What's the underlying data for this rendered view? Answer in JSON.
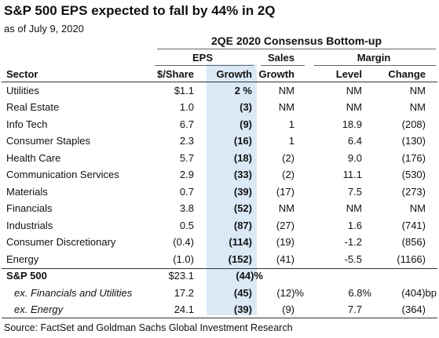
{
  "title": "S&P 500 EPS expected to fall by 44% in 2Q",
  "as_of": "as of July 9, 2020",
  "table_title": "2QE 2020 Consensus Bottom-up",
  "group_headers": {
    "eps": "EPS",
    "sales": "Sales",
    "margin": "Margin"
  },
  "column_headers": {
    "sector": "Sector",
    "per_share": "$/Share",
    "eps_growth": "Growth",
    "sales_growth": "Growth",
    "level": "Level",
    "change": "Change"
  },
  "rows": [
    {
      "sector": "Utilities",
      "per_share": "$1.1",
      "eps_growth": "2 %",
      "sales_growth": "NM",
      "level": "NM",
      "change": "NM"
    },
    {
      "sector": "Real Estate",
      "per_share": "1.0",
      "eps_growth": "(3)",
      "sales_growth": "NM",
      "level": "NM",
      "change": "NM"
    },
    {
      "sector": "Info Tech",
      "per_share": "6.7",
      "eps_growth": "(9)",
      "sales_growth": "1",
      "level": "18.9",
      "change": "(208)"
    },
    {
      "sector": "Consumer Staples",
      "per_share": "2.3",
      "eps_growth": "(16)",
      "sales_growth": "1",
      "level": "6.4",
      "change": "(130)"
    },
    {
      "sector": "Health Care",
      "per_share": "5.7",
      "eps_growth": "(18)",
      "sales_growth": "(2)",
      "level": "9.0",
      "change": "(176)"
    },
    {
      "sector": "Communication Services",
      "per_share": "2.9",
      "eps_growth": "(33)",
      "sales_growth": "(2)",
      "level": "11.1",
      "change": "(530)"
    },
    {
      "sector": "Materials",
      "per_share": "0.7",
      "eps_growth": "(39)",
      "sales_growth": "(17)",
      "level": "7.5",
      "change": "(273)"
    },
    {
      "sector": "Financials",
      "per_share": "3.8",
      "eps_growth": "(52)",
      "sales_growth": "NM",
      "level": "NM",
      "change": "NM"
    },
    {
      "sector": "Industrials",
      "per_share": "0.5",
      "eps_growth": "(87)",
      "sales_growth": "(27)",
      "level": "1.6",
      "change": "(741)"
    },
    {
      "sector": "Consumer Discretionary",
      "per_share": "(0.4)",
      "eps_growth": "(114)",
      "sales_growth": "(19)",
      "level": "-1.2",
      "change": "(856)"
    },
    {
      "sector": "Energy",
      "per_share": "(1.0)",
      "eps_growth": "(152)",
      "sales_growth": "(41)",
      "level": "-5.5",
      "change": "(1166)"
    }
  ],
  "summary_rows": [
    {
      "sector": "S&P 500",
      "per_share": "$23.1",
      "eps_growth": "(44)%",
      "sales_growth": "",
      "level": "",
      "change": ""
    },
    {
      "sector": "ex. Financials and Utilities",
      "per_share": "17.2",
      "eps_growth": "(45)",
      "sales_growth": "(12)%",
      "level": "6.8%",
      "change": "(404)bp"
    },
    {
      "sector": "ex. Energy",
      "per_share": "24.1",
      "eps_growth": "(39)",
      "sales_growth": "(9)",
      "level": "7.7",
      "change": "(364)"
    }
  ],
  "source": "Source: FactSet and Goldman Sachs Global Investment Research",
  "colors": {
    "highlight": "#dbe9f7",
    "text": "#111111"
  }
}
